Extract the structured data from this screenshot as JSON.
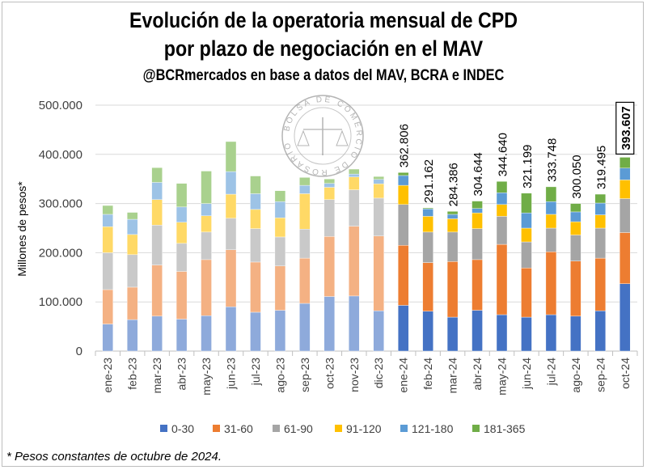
{
  "title_line1": "Evolución de la operatoria mensual de CPD",
  "title_line2": "por plazo de negociación en el MAV",
  "subtitle": "@BCRmercados en base a datos del MAV, BCRA e INDEC",
  "footnote": "* Pesos constantes de octubre de 2024.",
  "logo_text": "BOLSA DE COMERCIO DE ROSARIO",
  "chart_data": {
    "type": "bar",
    "stacked": true,
    "title": "Evolución de la operatoria mensual de CPD por plazo de negociación en el MAV",
    "ylabel": "Millones de pesos*",
    "xlabel": "",
    "ylim": [
      0,
      500000
    ],
    "yticks": [
      "0",
      "100.000",
      "200.000",
      "300.000",
      "400.000",
      "500.000"
    ],
    "grid": true,
    "legend_position": "bottom",
    "categories": [
      "ene-23",
      "feb-23",
      "mar-23",
      "abr-23",
      "may-23",
      "jun-23",
      "jul-23",
      "ago-23",
      "sep-23",
      "oct-23",
      "nov-23",
      "dic-23",
      "ene-24",
      "feb-24",
      "mar-24",
      "abr-24",
      "may-24",
      "jun-24",
      "jul-24",
      "ago-24",
      "sep-24",
      "oct-24"
    ],
    "series": [
      {
        "name": "0-30",
        "color_2023": "#8eaadb",
        "color_2024": "#4472c4",
        "values": [
          55000,
          64000,
          71000,
          65000,
          72000,
          90000,
          79000,
          83000,
          97000,
          111000,
          112000,
          82000,
          93000,
          81000,
          69000,
          83000,
          74000,
          69000,
          74000,
          71000,
          82000,
          137000
        ]
      },
      {
        "name": "31-60",
        "color_2023": "#f4b183",
        "color_2024": "#ed7d31",
        "values": [
          70000,
          66000,
          104000,
          97000,
          114000,
          116000,
          102000,
          90000,
          92000,
          122000,
          142000,
          152000,
          122000,
          99000,
          113000,
          103000,
          143000,
          100000,
          128000,
          112000,
          107000,
          104000
        ]
      },
      {
        "name": "61-90",
        "color_2023": "#c9c9c9",
        "color_2024": "#a5a5a5",
        "values": [
          75000,
          66000,
          81000,
          57000,
          56000,
          64000,
          68000,
          59000,
          59000,
          75000,
          74000,
          77000,
          83000,
          62000,
          60000,
          63000,
          57000,
          53000,
          48000,
          53000,
          61000,
          69000
        ]
      },
      {
        "name": "91-120",
        "color_2023": "#ffd966",
        "color_2024": "#ffc000",
        "values": [
          53000,
          41000,
          52000,
          43000,
          33000,
          49000,
          39000,
          39000,
          72000,
          25000,
          26000,
          29000,
          39000,
          32000,
          27000,
          32000,
          24000,
          28000,
          28000,
          27000,
          27000,
          38000
        ]
      },
      {
        "name": "121-180",
        "color_2023": "#9dc3e6",
        "color_2024": "#5b9bd5",
        "values": [
          25000,
          31000,
          35000,
          31000,
          25000,
          46000,
          32000,
          33000,
          17000,
          8000,
          6000,
          9000,
          20000,
          15000,
          9000,
          9000,
          24000,
          31000,
          26000,
          20000,
          24000,
          24000
        ]
      },
      {
        "name": "181-365",
        "color_2023": "#a9d18e",
        "color_2024": "#70ad47",
        "values": [
          18000,
          14000,
          30000,
          48000,
          66000,
          61000,
          36000,
          22000,
          16000,
          9000,
          10000,
          6000,
          6000,
          2000,
          6000,
          15000,
          23000,
          40000,
          30000,
          17000,
          18000,
          22000
        ]
      }
    ],
    "data_labels": [
      "",
      "",
      "",
      "",
      "",
      "",
      "",
      "",
      "",
      "",
      "",
      "",
      "362.806",
      "291.162",
      "284.386",
      "304.644",
      "344.640",
      "321.199",
      "333.748",
      "300.050",
      "319.495",
      "393.607"
    ],
    "highlighted_label": "393.607"
  }
}
